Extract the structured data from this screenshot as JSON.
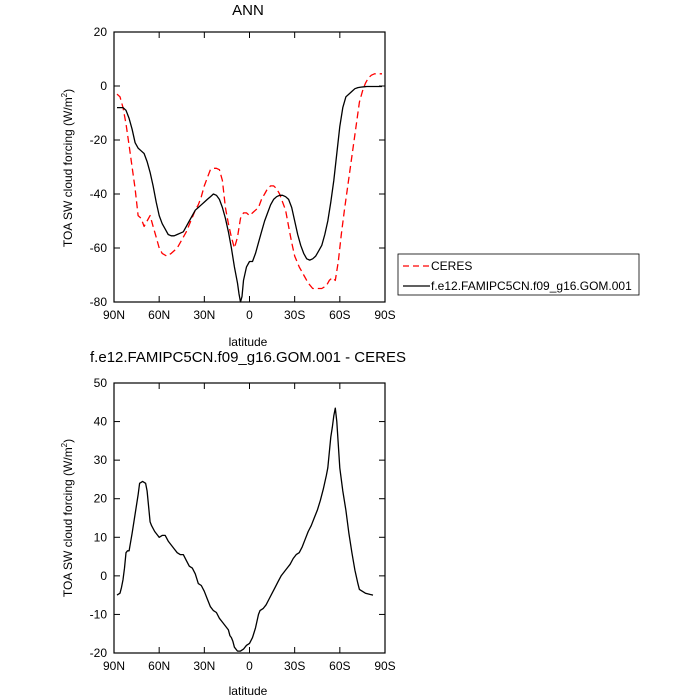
{
  "chart_data": [
    {
      "type": "line",
      "title": "ANN",
      "xlabel": "latitude",
      "ylabel": "TOA SW cloud forcing (W/m",
      "ylabel_sup": "2",
      "ylabel_close": ")",
      "xlim": [
        90,
        -90
      ],
      "ylim": [
        -80,
        20
      ],
      "x_ticks": [
        90,
        60,
        30,
        0,
        -30,
        -60,
        -90
      ],
      "x_tick_labels": [
        "90N",
        "60N",
        "30N",
        "0",
        "30S",
        "60S",
        "90S"
      ],
      "y_ticks": [
        -80,
        -60,
        -40,
        -20,
        0,
        20
      ],
      "y_tick_labels": [
        "-80",
        "-60",
        "-40",
        "-20",
        "0",
        "20"
      ],
      "grid": false,
      "legend": "right",
      "series": [
        {
          "name": "CERES",
          "color": "#ff0000",
          "dash": "dashed",
          "points": [
            [
              88,
              -3
            ],
            [
              86,
              -4
            ],
            [
              84,
              -8
            ],
            [
              82,
              -14
            ],
            [
              80,
              -22
            ],
            [
              78,
              -30
            ],
            [
              76,
              -38
            ],
            [
              74,
              -48
            ],
            [
              72,
              -49
            ],
            [
              70,
              -52
            ],
            [
              68,
              -50
            ],
            [
              66,
              -48
            ],
            [
              64,
              -52
            ],
            [
              62,
              -56
            ],
            [
              60,
              -60
            ],
            [
              58,
              -62
            ],
            [
              55,
              -63
            ],
            [
              52,
              -62
            ],
            [
              48,
              -60
            ],
            [
              45,
              -57
            ],
            [
              42,
              -54
            ],
            [
              39,
              -50
            ],
            [
              36,
              -46
            ],
            [
              34,
              -44
            ],
            [
              32,
              -41
            ],
            [
              30,
              -37
            ],
            [
              28,
              -34
            ],
            [
              26,
              -31
            ],
            [
              24,
              -30.5
            ],
            [
              22,
              -30.5
            ],
            [
              20,
              -31
            ],
            [
              18,
              -35
            ],
            [
              16,
              -45
            ],
            [
              14,
              -51
            ],
            [
              12,
              -56
            ],
            [
              10,
              -60
            ],
            [
              8,
              -56
            ],
            [
              6,
              -49
            ],
            [
              4,
              -47
            ],
            [
              2,
              -47
            ],
            [
              0,
              -48
            ],
            [
              -2,
              -47
            ],
            [
              -4,
              -46
            ],
            [
              -6,
              -45
            ],
            [
              -8,
              -42
            ],
            [
              -10,
              -40
            ],
            [
              -12,
              -38
            ],
            [
              -14,
              -37
            ],
            [
              -16,
              -37
            ],
            [
              -18,
              -38
            ],
            [
              -20,
              -40
            ],
            [
              -22,
              -43
            ],
            [
              -24,
              -46
            ],
            [
              -26,
              -52
            ],
            [
              -28,
              -58
            ],
            [
              -30,
              -63
            ],
            [
              -33,
              -67
            ],
            [
              -36,
              -70
            ],
            [
              -39,
              -73
            ],
            [
              -42,
              -75
            ],
            [
              -45,
              -75
            ],
            [
              -48,
              -75
            ],
            [
              -51,
              -74
            ],
            [
              -53,
              -72
            ],
            [
              -55,
              -71
            ],
            [
              -57,
              -72
            ],
            [
              -59,
              -65
            ],
            [
              -61,
              -55
            ],
            [
              -63,
              -46
            ],
            [
              -65,
              -38
            ],
            [
              -67,
              -30
            ],
            [
              -69,
              -22
            ],
            [
              -71,
              -14
            ],
            [
              -73,
              -6
            ],
            [
              -75,
              -2
            ],
            [
              -77,
              1
            ],
            [
              -79,
              3
            ],
            [
              -81,
              4
            ],
            [
              -83,
              4.5
            ],
            [
              -85,
              4.5
            ],
            [
              -88,
              4.5
            ]
          ]
        },
        {
          "name": "f.e12.FAMIPC5CN.f09_g16.GOM.001",
          "color": "#000000",
          "dash": "solid",
          "points": [
            [
              88,
              -8
            ],
            [
              86,
              -8
            ],
            [
              84,
              -8
            ],
            [
              82,
              -9
            ],
            [
              80,
              -12
            ],
            [
              78,
              -16
            ],
            [
              76,
              -21
            ],
            [
              74,
              -23
            ],
            [
              72,
              -24
            ],
            [
              70,
              -25
            ],
            [
              68,
              -28
            ],
            [
              66,
              -32
            ],
            [
              64,
              -37
            ],
            [
              62,
              -43
            ],
            [
              60,
              -48
            ],
            [
              58,
              -51
            ],
            [
              56,
              -53
            ],
            [
              54,
              -55
            ],
            [
              52,
              -55.5
            ],
            [
              50,
              -55.5
            ],
            [
              48,
              -55
            ],
            [
              46,
              -54.5
            ],
            [
              44,
              -54
            ],
            [
              42,
              -52
            ],
            [
              40,
              -50
            ],
            [
              38,
              -48
            ],
            [
              36,
              -46
            ],
            [
              34,
              -45
            ],
            [
              32,
              -44
            ],
            [
              30,
              -43
            ],
            [
              28,
              -42
            ],
            [
              26,
              -41
            ],
            [
              24,
              -40
            ],
            [
              22,
              -40.5
            ],
            [
              20,
              -42
            ],
            [
              18,
              -45
            ],
            [
              16,
              -49
            ],
            [
              14,
              -54
            ],
            [
              12,
              -60
            ],
            [
              10,
              -67
            ],
            [
              8,
              -73
            ],
            [
              7,
              -77
            ],
            [
              6,
              -80
            ],
            [
              5,
              -78
            ],
            [
              4,
              -72
            ],
            [
              2,
              -67
            ],
            [
              0,
              -65
            ],
            [
              -2,
              -65
            ],
            [
              -4,
              -62
            ],
            [
              -6,
              -58
            ],
            [
              -8,
              -54
            ],
            [
              -10,
              -50
            ],
            [
              -12,
              -47
            ],
            [
              -14,
              -44
            ],
            [
              -16,
              -42
            ],
            [
              -18,
              -41
            ],
            [
              -20,
              -40.5
            ],
            [
              -22,
              -40.5
            ],
            [
              -24,
              -41
            ],
            [
              -26,
              -42
            ],
            [
              -28,
              -45
            ],
            [
              -30,
              -50
            ],
            [
              -32,
              -55
            ],
            [
              -34,
              -59
            ],
            [
              -36,
              -62
            ],
            [
              -38,
              -64
            ],
            [
              -40,
              -64.5
            ],
            [
              -42,
              -64
            ],
            [
              -44,
              -63
            ],
            [
              -46,
              -61
            ],
            [
              -48,
              -59
            ],
            [
              -50,
              -55
            ],
            [
              -52,
              -50
            ],
            [
              -54,
              -43
            ],
            [
              -56,
              -35
            ],
            [
              -58,
              -25
            ],
            [
              -60,
              -15
            ],
            [
              -62,
              -8
            ],
            [
              -64,
              -4
            ],
            [
              -66,
              -3
            ],
            [
              -68,
              -2
            ],
            [
              -70,
              -1
            ],
            [
              -72,
              -0.6
            ],
            [
              -74,
              -0.4
            ],
            [
              -76,
              -0.3
            ],
            [
              -78,
              -0.2
            ],
            [
              -80,
              -0.2
            ],
            [
              -84,
              -0.2
            ],
            [
              -88,
              -0.2
            ]
          ]
        }
      ]
    },
    {
      "type": "line",
      "title": "f.e12.FAMIPC5CN.f09_g16.GOM.001 - CERES",
      "xlabel": "latitude",
      "ylabel": "TOA SW cloud forcing (W/m",
      "ylabel_sup": "2",
      "ylabel_close": ")",
      "xlim": [
        90,
        -90
      ],
      "ylim": [
        -20,
        50
      ],
      "x_ticks": [
        90,
        60,
        30,
        0,
        -30,
        -60,
        -90
      ],
      "x_tick_labels": [
        "90N",
        "60N",
        "30N",
        "0",
        "30S",
        "60S",
        "90S"
      ],
      "y_ticks": [
        -20,
        -10,
        0,
        10,
        20,
        30,
        40,
        50
      ],
      "y_tick_labels": [
        "-20",
        "-10",
        "0",
        "10",
        "20",
        "30",
        "40",
        "50"
      ],
      "grid": false,
      "series": [
        {
          "color": "#000000",
          "dash": "solid",
          "points": [
            [
              88,
              -5
            ],
            [
              86,
              -4.5
            ],
            [
              85,
              -3
            ],
            [
              84,
              -1
            ],
            [
              83,
              2
            ],
            [
              82,
              6
            ],
            [
              81,
              6.5
            ],
            [
              80,
              6.5
            ],
            [
              78,
              11
            ],
            [
              76,
              16
            ],
            [
              74,
              21
            ],
            [
              73,
              24
            ],
            [
              71,
              24.5
            ],
            [
              69,
              24
            ],
            [
              68,
              22
            ],
            [
              67,
              18
            ],
            [
              66,
              14
            ],
            [
              65,
              13
            ],
            [
              63,
              11.5
            ],
            [
              61,
              10.5
            ],
            [
              60,
              10
            ],
            [
              58,
              10.5
            ],
            [
              56,
              10.5
            ],
            [
              54,
              9
            ],
            [
              52,
              8
            ],
            [
              50,
              7
            ],
            [
              48,
              6
            ],
            [
              46,
              5.5
            ],
            [
              44,
              5.5
            ],
            [
              42,
              4
            ],
            [
              40,
              2.5
            ],
            [
              38,
              2
            ],
            [
              36,
              0.5
            ],
            [
              34,
              -2
            ],
            [
              32,
              -2.5
            ],
            [
              30,
              -4
            ],
            [
              28,
              -6
            ],
            [
              26,
              -8
            ],
            [
              24,
              -9
            ],
            [
              22,
              -9.5
            ],
            [
              20,
              -11
            ],
            [
              18,
              -12
            ],
            [
              16,
              -13
            ],
            [
              14,
              -14
            ],
            [
              13,
              -15.5
            ],
            [
              12,
              -16
            ],
            [
              11,
              -17
            ],
            [
              10,
              -18.5
            ],
            [
              8,
              -19.5
            ],
            [
              6,
              -19.5
            ],
            [
              4,
              -19
            ],
            [
              2,
              -18
            ],
            [
              0,
              -17.5
            ],
            [
              -2,
              -16
            ],
            [
              -4,
              -13.5
            ],
            [
              -6,
              -10
            ],
            [
              -7,
              -9
            ],
            [
              -9,
              -8.5
            ],
            [
              -11,
              -7.5
            ],
            [
              -13,
              -6
            ],
            [
              -15,
              -4.5
            ],
            [
              -17,
              -3
            ],
            [
              -19,
              -1.5
            ],
            [
              -21,
              0
            ],
            [
              -23,
              1
            ],
            [
              -25,
              2
            ],
            [
              -27,
              3
            ],
            [
              -29,
              4.5
            ],
            [
              -31,
              5.5
            ],
            [
              -33,
              6
            ],
            [
              -35,
              7.5
            ],
            [
              -37,
              9.5
            ],
            [
              -39,
              11.5
            ],
            [
              -41,
              13
            ],
            [
              -43,
              15
            ],
            [
              -45,
              17
            ],
            [
              -47,
              19.5
            ],
            [
              -49,
              22.5
            ],
            [
              -51,
              26
            ],
            [
              -52,
              28
            ],
            [
              -53,
              32
            ],
            [
              -54,
              36
            ],
            [
              -55,
              38.5
            ],
            [
              -56,
              41.5
            ],
            [
              -57,
              43.5
            ],
            [
              -58,
              40
            ],
            [
              -59,
              34
            ],
            [
              -60,
              28
            ],
            [
              -62,
              22
            ],
            [
              -64,
              17
            ],
            [
              -66,
              11
            ],
            [
              -68,
              6
            ],
            [
              -70,
              1.5
            ],
            [
              -72,
              -2
            ],
            [
              -73,
              -3.5
            ],
            [
              -75,
              -4
            ],
            [
              -77,
              -4.5
            ],
            [
              -80,
              -4.8
            ],
            [
              -82,
              -5
            ]
          ]
        }
      ]
    }
  ]
}
